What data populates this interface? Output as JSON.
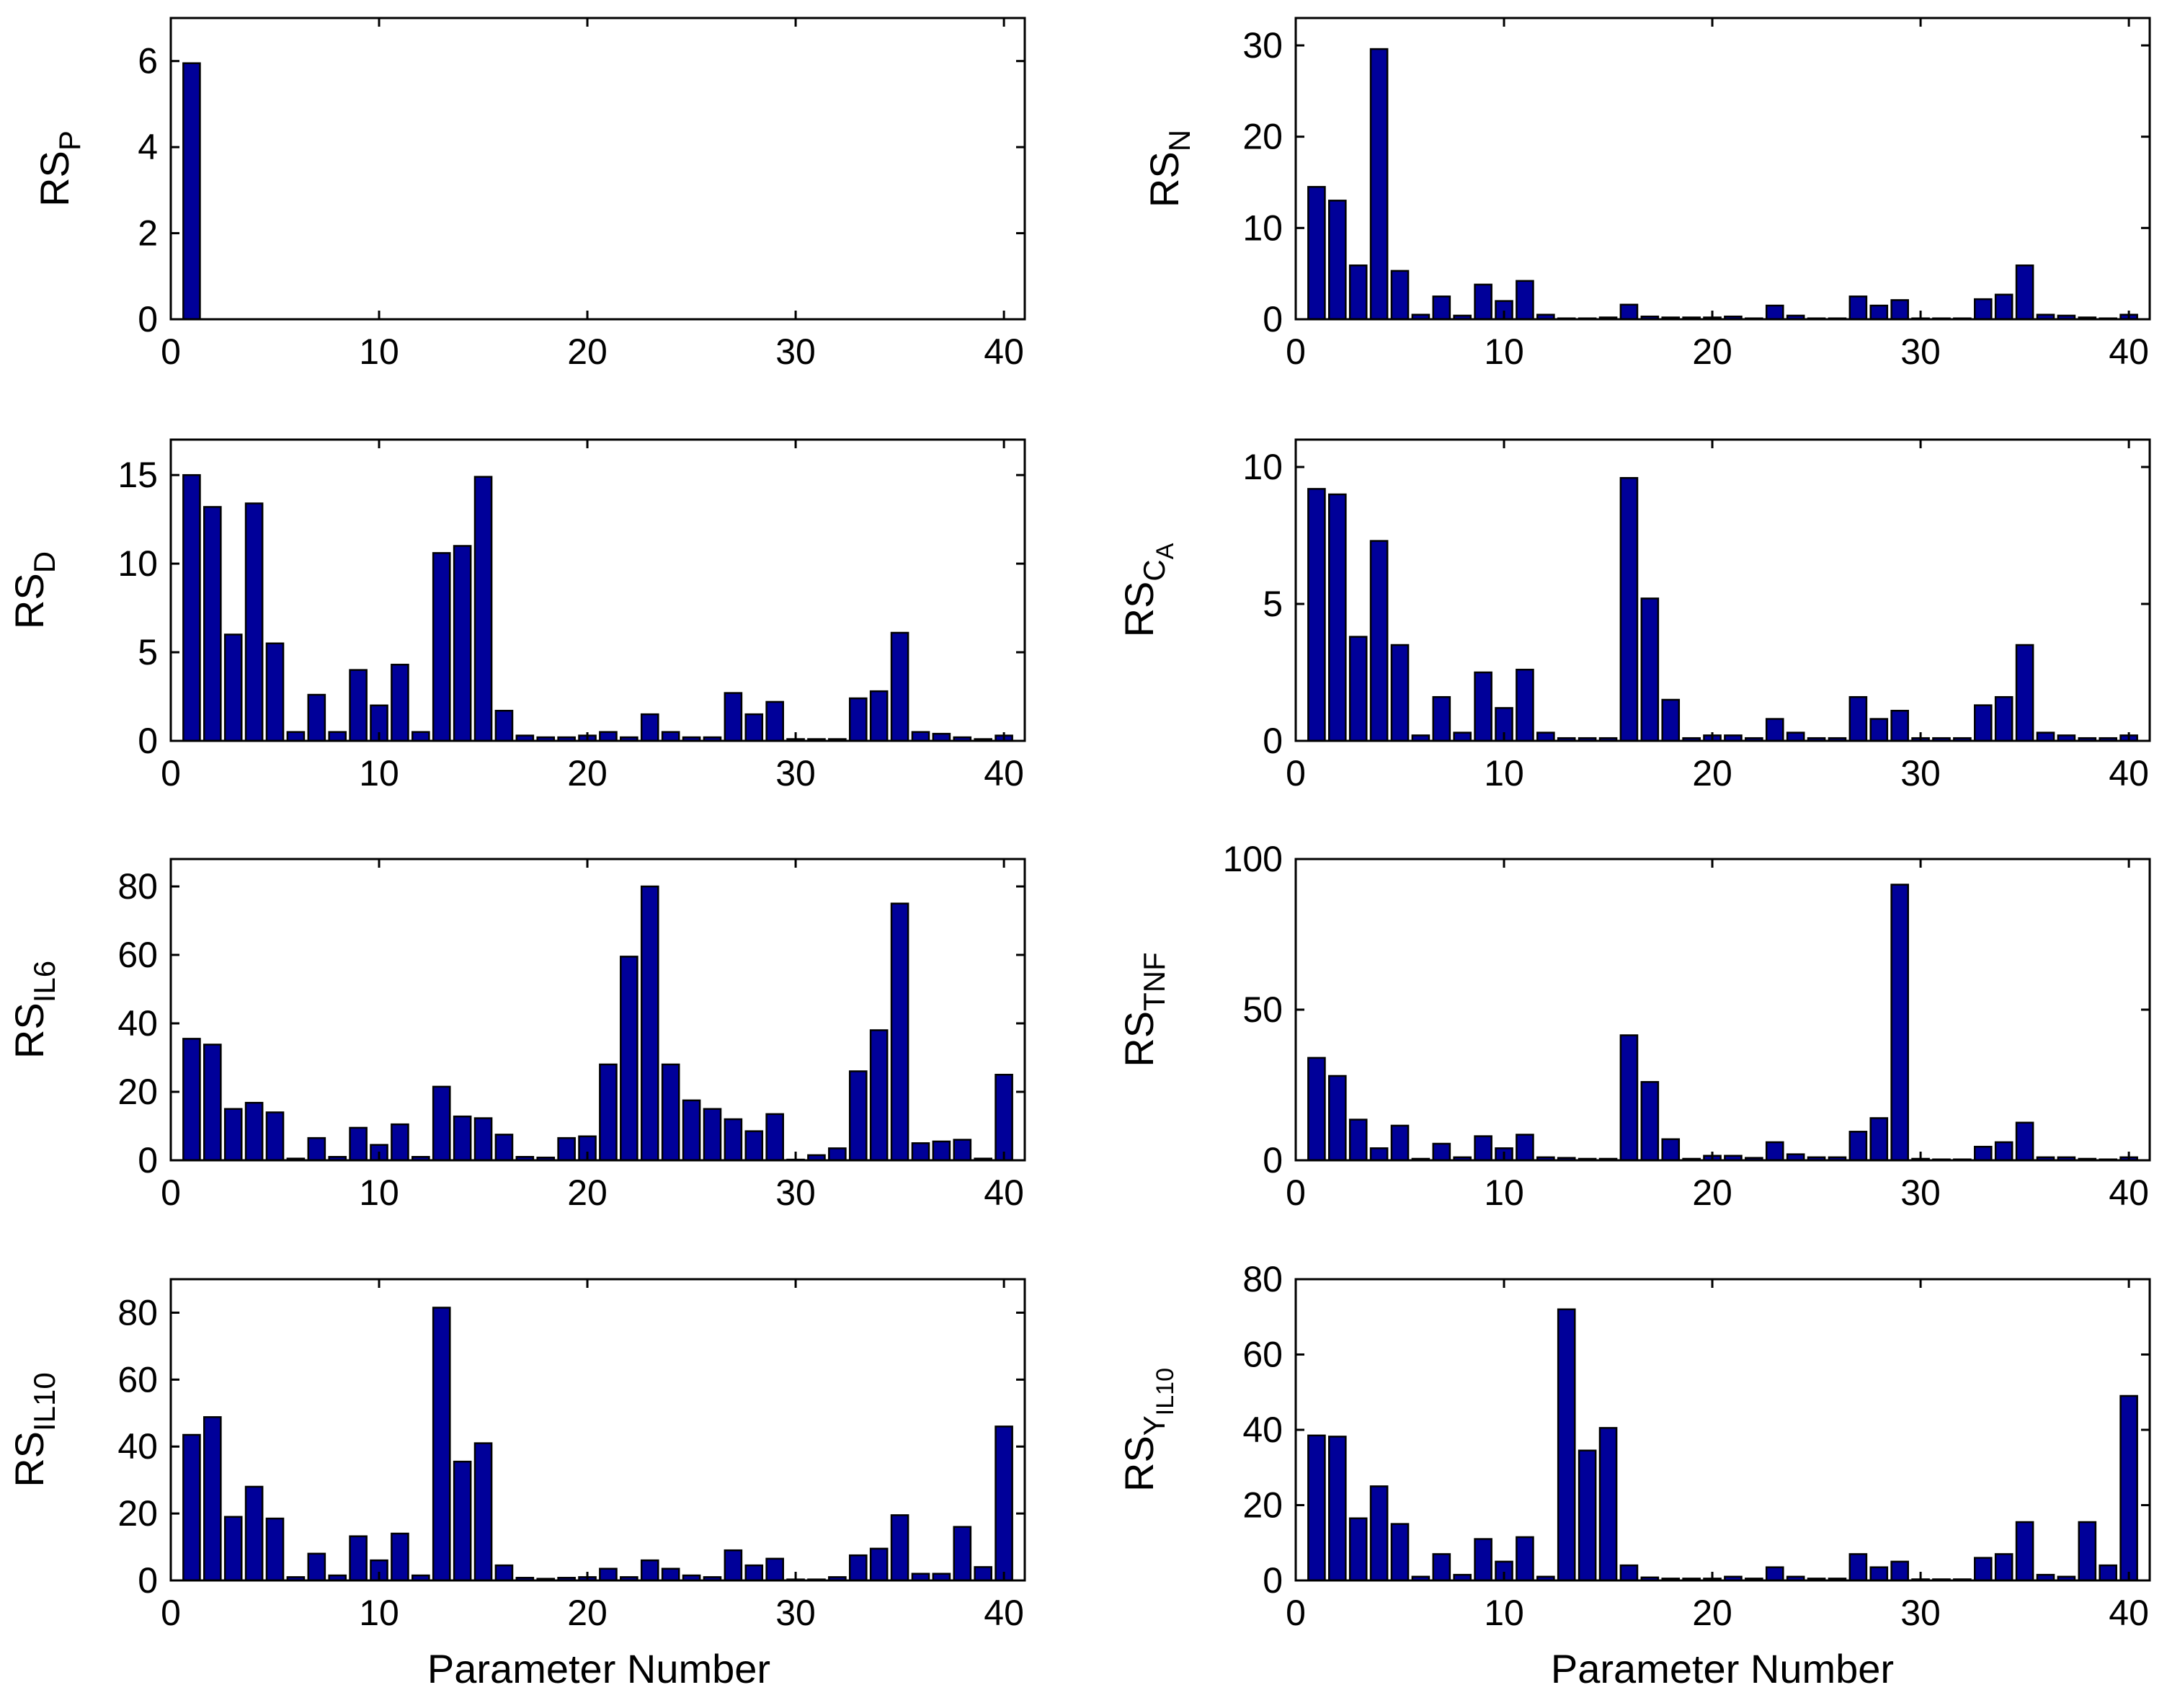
{
  "figure": {
    "xlabel": "Parameter Number",
    "bar_color": "#000099",
    "bar_edge": "#000000"
  },
  "chart_data": [
    {
      "type": "bar",
      "panel": "top-left",
      "ylabel_base": "RS",
      "ylabel_sub": "P",
      "xlim": [
        0,
        41
      ],
      "ylim": [
        0,
        7
      ],
      "xticks": [
        0,
        10,
        20,
        30,
        40
      ],
      "yticks": [
        0,
        2,
        4,
        6
      ],
      "categories": [
        1,
        2,
        3,
        4,
        5,
        6,
        7,
        8,
        9,
        10,
        11,
        12,
        13,
        14,
        15,
        16,
        17,
        18,
        19,
        20,
        21,
        22,
        23,
        24,
        25,
        26,
        27,
        28,
        29,
        30,
        31,
        32,
        33,
        34,
        35,
        36,
        37,
        38,
        39,
        40
      ],
      "values": [
        5.95,
        0,
        0,
        0,
        0,
        0,
        0,
        0,
        0,
        0,
        0,
        0,
        0,
        0,
        0,
        0,
        0,
        0,
        0,
        0,
        0,
        0,
        0,
        0,
        0,
        0,
        0,
        0,
        0,
        0,
        0,
        0,
        0,
        0,
        0,
        0,
        0,
        0,
        0,
        0
      ]
    },
    {
      "type": "bar",
      "panel": "top-right",
      "ylabel_base": "RS",
      "ylabel_sub": "N",
      "xlim": [
        0,
        41
      ],
      "ylim": [
        0,
        33
      ],
      "xticks": [
        0,
        10,
        20,
        30,
        40
      ],
      "yticks": [
        0,
        10,
        20,
        30
      ],
      "categories": [
        1,
        2,
        3,
        4,
        5,
        6,
        7,
        8,
        9,
        10,
        11,
        12,
        13,
        14,
        15,
        16,
        17,
        18,
        19,
        20,
        21,
        22,
        23,
        24,
        25,
        26,
        27,
        28,
        29,
        30,
        31,
        32,
        33,
        34,
        35,
        36,
        37,
        38,
        39,
        40
      ],
      "values": [
        14.5,
        13.0,
        5.9,
        29.6,
        5.3,
        0.5,
        2.5,
        0.4,
        3.8,
        2.0,
        4.2,
        0.5,
        0.1,
        0.1,
        0.2,
        1.6,
        0.3,
        0.2,
        0.2,
        0.2,
        0.3,
        0.1,
        1.5,
        0.4,
        0.1,
        0.1,
        2.5,
        1.5,
        2.1,
        0.1,
        0.1,
        0.1,
        2.2,
        2.7,
        5.9,
        0.5,
        0.4,
        0.2,
        0.1,
        0.5
      ]
    },
    {
      "type": "bar",
      "panel": "row2-left",
      "ylabel_base": "RS",
      "ylabel_sub": "D",
      "xlim": [
        0,
        41
      ],
      "ylim": [
        0,
        17
      ],
      "xticks": [
        0,
        10,
        20,
        30,
        40
      ],
      "yticks": [
        0,
        5,
        10,
        15
      ],
      "categories": [
        1,
        2,
        3,
        4,
        5,
        6,
        7,
        8,
        9,
        10,
        11,
        12,
        13,
        14,
        15,
        16,
        17,
        18,
        19,
        20,
        21,
        22,
        23,
        24,
        25,
        26,
        27,
        28,
        29,
        30,
        31,
        32,
        33,
        34,
        35,
        36,
        37,
        38,
        39,
        40
      ],
      "values": [
        15.0,
        13.2,
        6.0,
        13.4,
        5.5,
        0.5,
        2.6,
        0.5,
        4.0,
        2.0,
        4.3,
        0.5,
        10.6,
        11.0,
        14.9,
        1.7,
        0.3,
        0.2,
        0.2,
        0.3,
        0.5,
        0.2,
        1.5,
        0.5,
        0.2,
        0.2,
        2.7,
        1.5,
        2.2,
        0.1,
        0.1,
        0.1,
        2.4,
        2.8,
        6.1,
        0.5,
        0.4,
        0.2,
        0.1,
        0.3
      ]
    },
    {
      "type": "bar",
      "panel": "row2-right",
      "ylabel_base": "RS",
      "ylabel_sub": "C",
      "ylabel_subsub": "A",
      "xlim": [
        0,
        41
      ],
      "ylim": [
        0,
        11
      ],
      "xticks": [
        0,
        10,
        20,
        30,
        40
      ],
      "yticks": [
        0,
        5,
        10
      ],
      "categories": [
        1,
        2,
        3,
        4,
        5,
        6,
        7,
        8,
        9,
        10,
        11,
        12,
        13,
        14,
        15,
        16,
        17,
        18,
        19,
        20,
        21,
        22,
        23,
        24,
        25,
        26,
        27,
        28,
        29,
        30,
        31,
        32,
        33,
        34,
        35,
        36,
        37,
        38,
        39,
        40
      ],
      "values": [
        9.2,
        9.0,
        3.8,
        7.3,
        3.5,
        0.2,
        1.6,
        0.3,
        2.5,
        1.2,
        2.6,
        0.3,
        0.1,
        0.1,
        0.1,
        9.6,
        5.2,
        1.5,
        0.1,
        0.2,
        0.2,
        0.1,
        0.8,
        0.3,
        0.1,
        0.1,
        1.6,
        0.8,
        1.1,
        0.1,
        0.1,
        0.1,
        1.3,
        1.6,
        3.5,
        0.3,
        0.2,
        0.1,
        0.1,
        0.2
      ]
    },
    {
      "type": "bar",
      "panel": "row3-left",
      "ylabel_base": "RS",
      "ylabel_sub": "IL6",
      "xlim": [
        0,
        41
      ],
      "ylim": [
        0,
        88
      ],
      "xticks": [
        0,
        10,
        20,
        30,
        40
      ],
      "yticks": [
        0,
        20,
        40,
        60,
        80
      ],
      "categories": [
        1,
        2,
        3,
        4,
        5,
        6,
        7,
        8,
        9,
        10,
        11,
        12,
        13,
        14,
        15,
        16,
        17,
        18,
        19,
        20,
        21,
        22,
        23,
        24,
        25,
        26,
        27,
        28,
        29,
        30,
        31,
        32,
        33,
        34,
        35,
        36,
        37,
        38,
        39,
        40
      ],
      "values": [
        35.5,
        33.8,
        15.0,
        16.8,
        14.0,
        0.5,
        6.5,
        1.0,
        9.5,
        4.5,
        10.5,
        1.0,
        21.5,
        12.8,
        12.3,
        7.5,
        1.0,
        0.8,
        6.5,
        7.0,
        28.0,
        59.5,
        80.0,
        28.0,
        17.5,
        15.0,
        12.0,
        8.5,
        13.5,
        0.2,
        1.5,
        3.5,
        26.0,
        38.0,
        75.0,
        5.0,
        5.5,
        6.0,
        0.5,
        25.0
      ]
    },
    {
      "type": "bar",
      "panel": "row3-right",
      "ylabel_base": "RS",
      "ylabel_sub": "TNF",
      "xlim": [
        0,
        41
      ],
      "ylim": [
        0,
        100
      ],
      "xticks": [
        0,
        10,
        20,
        30,
        40
      ],
      "yticks": [
        0,
        50,
        100
      ],
      "categories": [
        1,
        2,
        3,
        4,
        5,
        6,
        7,
        8,
        9,
        10,
        11,
        12,
        13,
        14,
        15,
        16,
        17,
        18,
        19,
        20,
        21,
        22,
        23,
        24,
        25,
        26,
        27,
        28,
        29,
        30,
        31,
        32,
        33,
        34,
        35,
        36,
        37,
        38,
        39,
        40
      ],
      "values": [
        34.0,
        28.0,
        13.5,
        4.0,
        11.5,
        0.5,
        5.5,
        1.0,
        8.0,
        4.0,
        8.5,
        1.0,
        0.8,
        0.5,
        0.5,
        41.5,
        26.0,
        7.0,
        0.5,
        1.5,
        1.5,
        0.8,
        6.0,
        2.0,
        1.0,
        1.0,
        9.5,
        14.0,
        91.5,
        0.5,
        0.3,
        0.3,
        4.5,
        6.0,
        12.5,
        1.0,
        1.0,
        0.5,
        0.3,
        1.0
      ]
    },
    {
      "type": "bar",
      "panel": "bottom-left",
      "ylabel_base": "RS",
      "ylabel_sub": "IL10",
      "xlim": [
        0,
        41
      ],
      "ylim": [
        0,
        90
      ],
      "xticks": [
        0,
        10,
        20,
        30,
        40
      ],
      "yticks": [
        0,
        20,
        40,
        60,
        80
      ],
      "categories": [
        1,
        2,
        3,
        4,
        5,
        6,
        7,
        8,
        9,
        10,
        11,
        12,
        13,
        14,
        15,
        16,
        17,
        18,
        19,
        20,
        21,
        22,
        23,
        24,
        25,
        26,
        27,
        28,
        29,
        30,
        31,
        32,
        33,
        34,
        35,
        36,
        37,
        38,
        39,
        40
      ],
      "values": [
        43.5,
        48.8,
        19.0,
        28.0,
        18.5,
        1.0,
        8.0,
        1.5,
        13.2,
        6.0,
        14.0,
        1.5,
        81.5,
        35.5,
        41.0,
        4.5,
        0.8,
        0.5,
        0.8,
        1.0,
        3.5,
        1.0,
        6.0,
        3.5,
        1.5,
        1.0,
        9.0,
        4.5,
        6.5,
        0.3,
        0.3,
        1.0,
        7.5,
        9.5,
        19.5,
        2.0,
        2.0,
        16.0,
        4.0,
        46.0
      ]
    },
    {
      "type": "bar",
      "panel": "bottom-right",
      "ylabel_base": "RS",
      "ylabel_sub": "Y",
      "ylabel_subsub": "IL10",
      "xlim": [
        0,
        41
      ],
      "ylim": [
        0,
        80
      ],
      "xticks": [
        0,
        10,
        20,
        30,
        40
      ],
      "yticks": [
        0,
        20,
        40,
        60,
        80
      ],
      "categories": [
        1,
        2,
        3,
        4,
        5,
        6,
        7,
        8,
        9,
        10,
        11,
        12,
        13,
        14,
        15,
        16,
        17,
        18,
        19,
        20,
        21,
        22,
        23,
        24,
        25,
        26,
        27,
        28,
        29,
        30,
        31,
        32,
        33,
        34,
        35,
        36,
        37,
        38,
        39,
        40
      ],
      "values": [
        38.5,
        38.2,
        16.5,
        25.0,
        15.0,
        1.0,
        7.0,
        1.5,
        11.0,
        5.0,
        11.5,
        1.0,
        72.0,
        34.5,
        40.5,
        4.0,
        0.8,
        0.5,
        0.5,
        0.5,
        1.0,
        0.5,
        3.5,
        1.0,
        0.5,
        0.5,
        7.0,
        3.5,
        5.0,
        0.3,
        0.3,
        0.3,
        6.0,
        7.0,
        15.5,
        1.5,
        1.0,
        15.5,
        4.0,
        49.0
      ]
    }
  ]
}
